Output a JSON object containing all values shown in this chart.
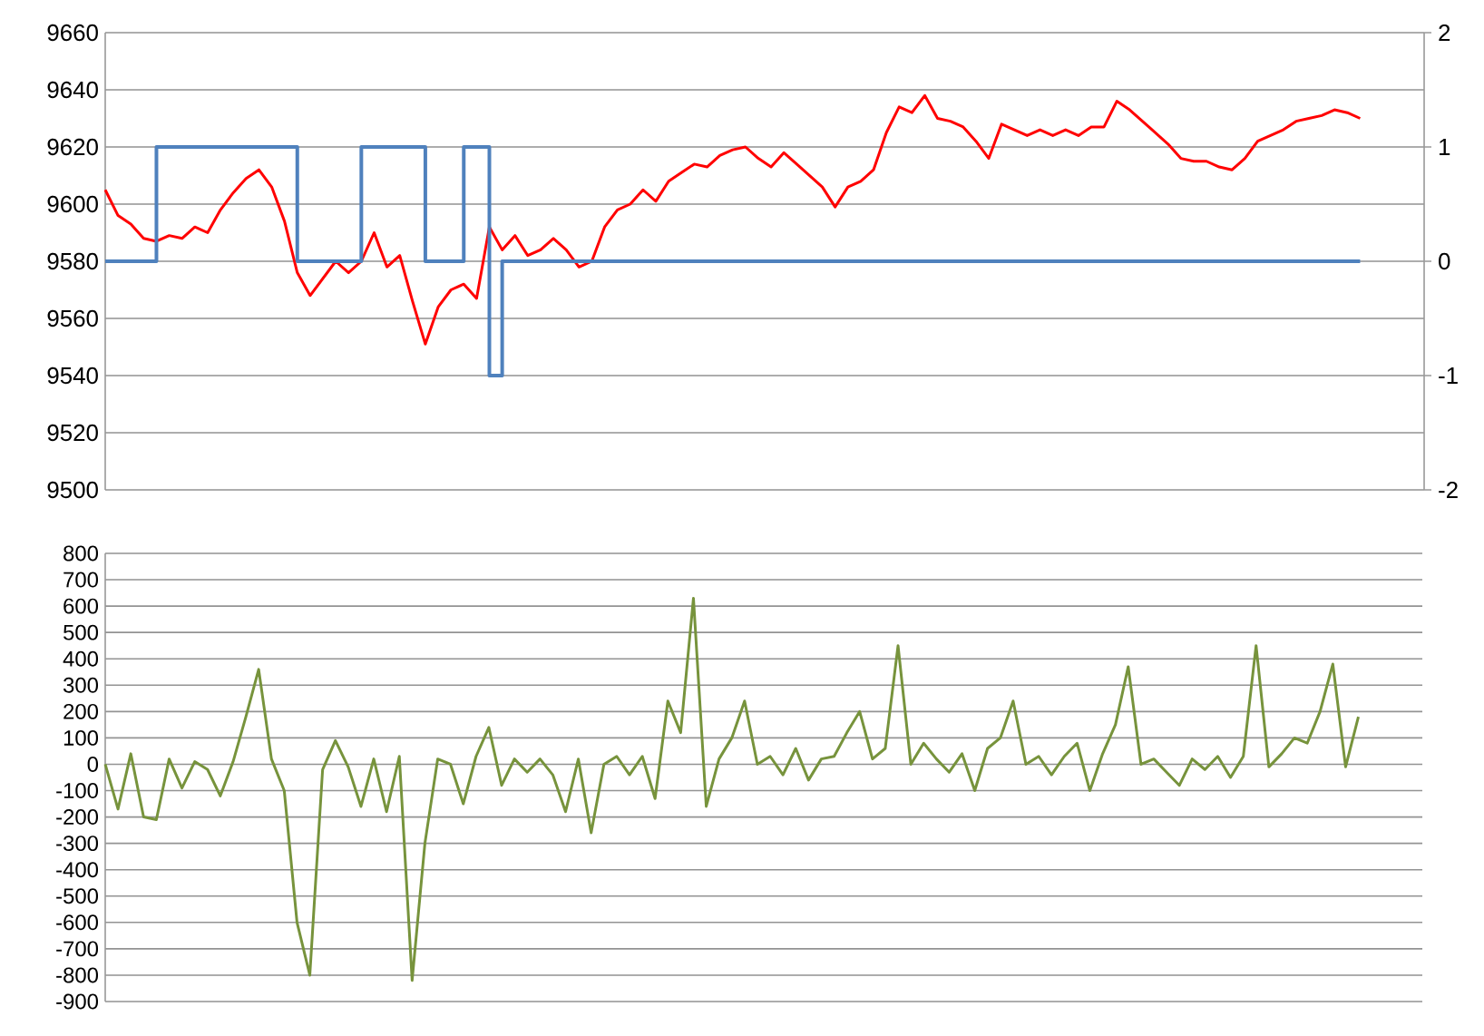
{
  "chart_data": [
    {
      "type": "line",
      "categories": [
        null,
        null,
        null,
        null,
        null,
        null,
        null,
        null,
        null,
        null,
        null,
        null,
        null,
        null,
        null,
        null,
        null,
        null,
        null,
        null,
        null,
        null,
        null,
        null,
        null,
        null,
        null,
        null,
        null,
        null,
        null,
        null,
        null,
        null,
        null,
        null,
        null,
        null,
        null,
        null,
        null,
        null,
        null,
        null,
        null,
        null,
        null,
        null,
        null,
        null,
        null,
        null,
        null,
        null,
        null,
        null,
        null,
        null,
        null,
        null,
        null,
        null,
        null,
        null,
        null,
        null,
        null,
        null,
        null,
        null,
        null,
        null,
        null,
        null,
        null,
        null,
        null,
        null,
        null,
        null,
        null,
        null,
        null,
        null,
        null,
        null,
        null,
        null,
        null,
        null,
        null,
        null,
        null,
        null,
        null,
        null,
        null,
        null,
        null
      ],
      "series": [
        {
          "color": "#ff0000",
          "values": [
            9605,
            9596,
            9593,
            9588,
            9587,
            9589,
            9588,
            9592,
            9590,
            9598,
            9604,
            9609,
            9612,
            9606,
            9594,
            9576,
            9568,
            9574,
            9580,
            9576,
            9580,
            9590,
            9578,
            9582,
            9566,
            9551,
            9564,
            9570,
            9572,
            9567,
            9592,
            9584,
            9589,
            9582,
            9584,
            9588,
            9584,
            9578,
            9580,
            9592,
            9598,
            9600,
            9605,
            9601,
            9608,
            9611,
            9614,
            9613,
            9617,
            9619,
            9620,
            9616,
            9613,
            9618,
            9614,
            9610,
            9606,
            9599,
            9606,
            9608,
            9612,
            9625,
            9634,
            9632,
            9638,
            9630,
            9629,
            9627,
            9622,
            9616,
            9628,
            9626,
            9624,
            9626,
            9624,
            9626,
            9624,
            9627,
            9627,
            9636,
            9633,
            9629,
            9625,
            9621,
            9616,
            9615,
            9615,
            9613,
            9612,
            9616,
            9622,
            9624,
            9626,
            9629,
            9630,
            9631,
            9633,
            9632,
            9630
          ]
        },
        {
          "type": "step",
          "axis": "y2",
          "color": "#4f81bd",
          "values": [
            0,
            0,
            0,
            0,
            1,
            1,
            1,
            1,
            1,
            1,
            1,
            1,
            1,
            1,
            1,
            0,
            0,
            0,
            0,
            0,
            1,
            1,
            1,
            1,
            1,
            0,
            0,
            0,
            1,
            1,
            -1,
            0,
            0,
            0,
            0,
            0,
            0,
            0,
            0,
            0,
            0,
            0,
            0,
            0,
            0,
            0,
            0,
            0,
            0,
            0,
            0,
            0,
            0,
            0,
            0,
            0,
            0,
            0,
            0,
            0,
            0,
            0,
            0,
            0,
            0,
            0,
            0,
            0,
            0,
            0,
            0,
            0,
            0,
            0,
            0,
            0,
            0,
            0,
            0,
            0,
            0,
            0,
            0,
            0,
            0,
            0,
            0,
            0,
            0,
            0,
            0,
            0,
            0,
            0,
            0,
            0,
            0,
            0,
            0
          ]
        }
      ],
      "ylim": [
        9500,
        9660
      ],
      "yticks": [
        9500,
        9520,
        9540,
        9560,
        9580,
        9600,
        9620,
        9640,
        9660
      ],
      "y2lim": [
        -2,
        2
      ],
      "y2ticks": [
        -2,
        -1,
        0,
        1,
        2
      ],
      "grid": "y"
    },
    {
      "type": "line",
      "categories": [
        null,
        null,
        null,
        null,
        null,
        null,
        null,
        null,
        null,
        null,
        null,
        null,
        null,
        null,
        null,
        null,
        null,
        null,
        null,
        null,
        null,
        null,
        null,
        null,
        null,
        null,
        null,
        null,
        null,
        null,
        null,
        null,
        null,
        null,
        null,
        null,
        null,
        null,
        null,
        null,
        null,
        null,
        null,
        null,
        null,
        null,
        null,
        null,
        null,
        null,
        null,
        null,
        null,
        null,
        null,
        null,
        null,
        null,
        null,
        null,
        null,
        null,
        null,
        null,
        null,
        null,
        null,
        null,
        null,
        null,
        null,
        null,
        null,
        null,
        null,
        null,
        null,
        null,
        null,
        null,
        null,
        null,
        null,
        null,
        null,
        null,
        null,
        null,
        null,
        null,
        null,
        null,
        null,
        null,
        null,
        null,
        null,
        null,
        null
      ],
      "series": [
        {
          "color": "#77933c",
          "values": [
            0,
            -170,
            40,
            -200,
            -210,
            20,
            -90,
            10,
            -20,
            -120,
            10,
            180,
            360,
            20,
            -100,
            -600,
            -800,
            -20,
            90,
            -10,
            -160,
            20,
            -180,
            30,
            -820,
            -300,
            20,
            0,
            -150,
            30,
            140,
            -80,
            20,
            -30,
            20,
            -40,
            -180,
            20,
            -260,
            0,
            30,
            -40,
            30,
            -130,
            240,
            120,
            630,
            -160,
            20,
            100,
            240,
            0,
            30,
            -40,
            60,
            -60,
            20,
            30,
            120,
            200,
            20,
            60,
            450,
            0,
            80,
            20,
            -30,
            40,
            -100,
            60,
            100,
            240,
            0,
            30,
            -40,
            30,
            80,
            -100,
            40,
            150,
            370,
            0,
            20,
            -30,
            -80,
            20,
            -20,
            30,
            -50,
            30,
            450,
            -10,
            40,
            100,
            80,
            200,
            380,
            -10,
            180
          ]
        }
      ],
      "ylim": [
        -900,
        800
      ],
      "yticks": [
        -900,
        -800,
        -700,
        -600,
        -500,
        -400,
        -300,
        -200,
        -100,
        0,
        100,
        200,
        300,
        400,
        500,
        600,
        700,
        800
      ],
      "grid": "y"
    }
  ]
}
